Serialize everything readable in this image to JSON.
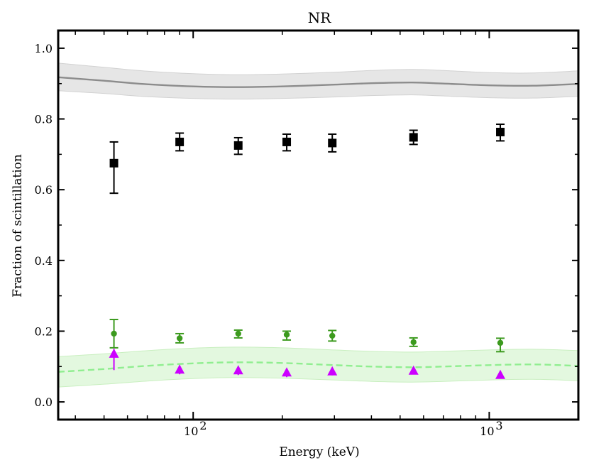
{
  "chart_data": {
    "type": "scatter",
    "title": "NR",
    "xlabel": "Energy (keV)",
    "ylabel": "Fraction of scintillation",
    "xscale": "log",
    "xlim": [
      35,
      2000
    ],
    "ylim": [
      -0.05,
      1.05
    ],
    "yticks": [
      0.0,
      0.2,
      0.4,
      0.6,
      0.8,
      1.0
    ],
    "ytick_labels": [
      "0.0",
      "0.2",
      "0.4",
      "0.6",
      "0.8",
      "1.0"
    ],
    "xticks_major": [
      {
        "value": 100,
        "base": "10",
        "exp": "2"
      },
      {
        "value": 1000,
        "base": "10",
        "exp": "3"
      }
    ],
    "xticks_minor": [
      40,
      50,
      60,
      70,
      80,
      90,
      200,
      300,
      400,
      500,
      600,
      700,
      800,
      900,
      2000
    ],
    "grid": false,
    "bands": [
      {
        "name": "upper model band",
        "color": "#8c8c8c",
        "fill": "#e6e6e6",
        "style": "solid",
        "x": [
          35,
          50,
          70,
          100,
          140,
          200,
          300,
          400,
          550,
          700,
          1000,
          1400,
          2000
        ],
        "center": [
          0.918,
          0.908,
          0.898,
          0.892,
          0.89,
          0.892,
          0.897,
          0.901,
          0.903,
          0.9,
          0.895,
          0.894,
          0.899
        ],
        "lower": [
          0.88,
          0.872,
          0.863,
          0.858,
          0.856,
          0.858,
          0.862,
          0.866,
          0.868,
          0.865,
          0.86,
          0.859,
          0.864
        ],
        "upper": [
          0.958,
          0.946,
          0.935,
          0.928,
          0.925,
          0.927,
          0.932,
          0.937,
          0.94,
          0.937,
          0.931,
          0.93,
          0.936
        ]
      },
      {
        "name": "lower model band",
        "color": "#90ee90",
        "fill": "#e3f8df",
        "style": "dashed",
        "x": [
          35,
          50,
          70,
          100,
          140,
          200,
          300,
          400,
          550,
          700,
          1000,
          1400,
          2000
        ],
        "center": [
          0.085,
          0.093,
          0.102,
          0.109,
          0.112,
          0.11,
          0.104,
          0.1,
          0.098,
          0.1,
          0.104,
          0.106,
          0.102
        ],
        "lower": [
          0.042,
          0.05,
          0.059,
          0.066,
          0.069,
          0.067,
          0.062,
          0.058,
          0.056,
          0.058,
          0.062,
          0.064,
          0.06
        ],
        "upper": [
          0.128,
          0.136,
          0.145,
          0.152,
          0.155,
          0.153,
          0.147,
          0.143,
          0.141,
          0.143,
          0.147,
          0.149,
          0.145
        ]
      }
    ],
    "series": [
      {
        "name": "black squares",
        "marker": "square",
        "color": "#000000",
        "x": [
          54,
          90,
          142,
          207,
          295,
          555,
          1090
        ],
        "y": [
          0.675,
          0.735,
          0.725,
          0.735,
          0.732,
          0.748,
          0.763
        ],
        "err_low": [
          0.085,
          0.025,
          0.025,
          0.025,
          0.025,
          0.02,
          0.025
        ],
        "err_high": [
          0.06,
          0.025,
          0.022,
          0.022,
          0.025,
          0.02,
          0.022
        ]
      },
      {
        "name": "green circles",
        "marker": "circle",
        "color": "#3c9a1e",
        "x": [
          54,
          90,
          142,
          207,
          295,
          555,
          1090
        ],
        "y": [
          0.193,
          0.18,
          0.193,
          0.19,
          0.187,
          0.169,
          0.167
        ],
        "err_low": [
          0.04,
          0.013,
          0.012,
          0.015,
          0.015,
          0.012,
          0.025
        ],
        "err_high": [
          0.04,
          0.013,
          0.01,
          0.01,
          0.015,
          0.012,
          0.013
        ]
      },
      {
        "name": "magenta triangles",
        "marker": "triangle",
        "color": "#cc00ff",
        "x": [
          54,
          90,
          142,
          207,
          295,
          555,
          1090
        ],
        "y": [
          0.135,
          0.09,
          0.088,
          0.082,
          0.085,
          0.087,
          0.075
        ],
        "err_low": [
          0.045,
          0.012,
          0.012,
          0.012,
          0.01,
          0.008,
          0.008
        ],
        "err_high": [
          0.015,
          0.01,
          0.008,
          0.008,
          0.008,
          0.006,
          0.006
        ]
      }
    ]
  }
}
